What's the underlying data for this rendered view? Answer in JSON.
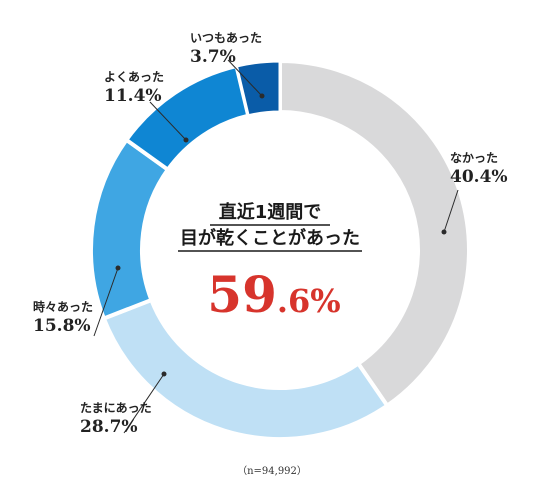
{
  "chart_data": {
    "type": "pie",
    "donut": true,
    "start": "12 o'clock",
    "direction": "clockwise",
    "categories": [
      "なかった",
      "たまにあった",
      "時々あった",
      "よくあった",
      "いつもあった"
    ],
    "values": [
      40.4,
      28.7,
      15.8,
      11.4,
      3.7
    ],
    "value_labels": [
      "40.4%",
      "28.7%",
      "15.8%",
      "11.4%",
      "3.7%"
    ],
    "colors": [
      "#d9d9da",
      "#bfe0f5",
      "#3fa6e3",
      "#0f86d3",
      "#0a5ca8"
    ],
    "center": {
      "title_line1": "直近1週間で",
      "title_line2": "目が乾くことがあった",
      "value_main": "59",
      "value_rest": ".6%"
    },
    "note": "（n=94,992）"
  }
}
